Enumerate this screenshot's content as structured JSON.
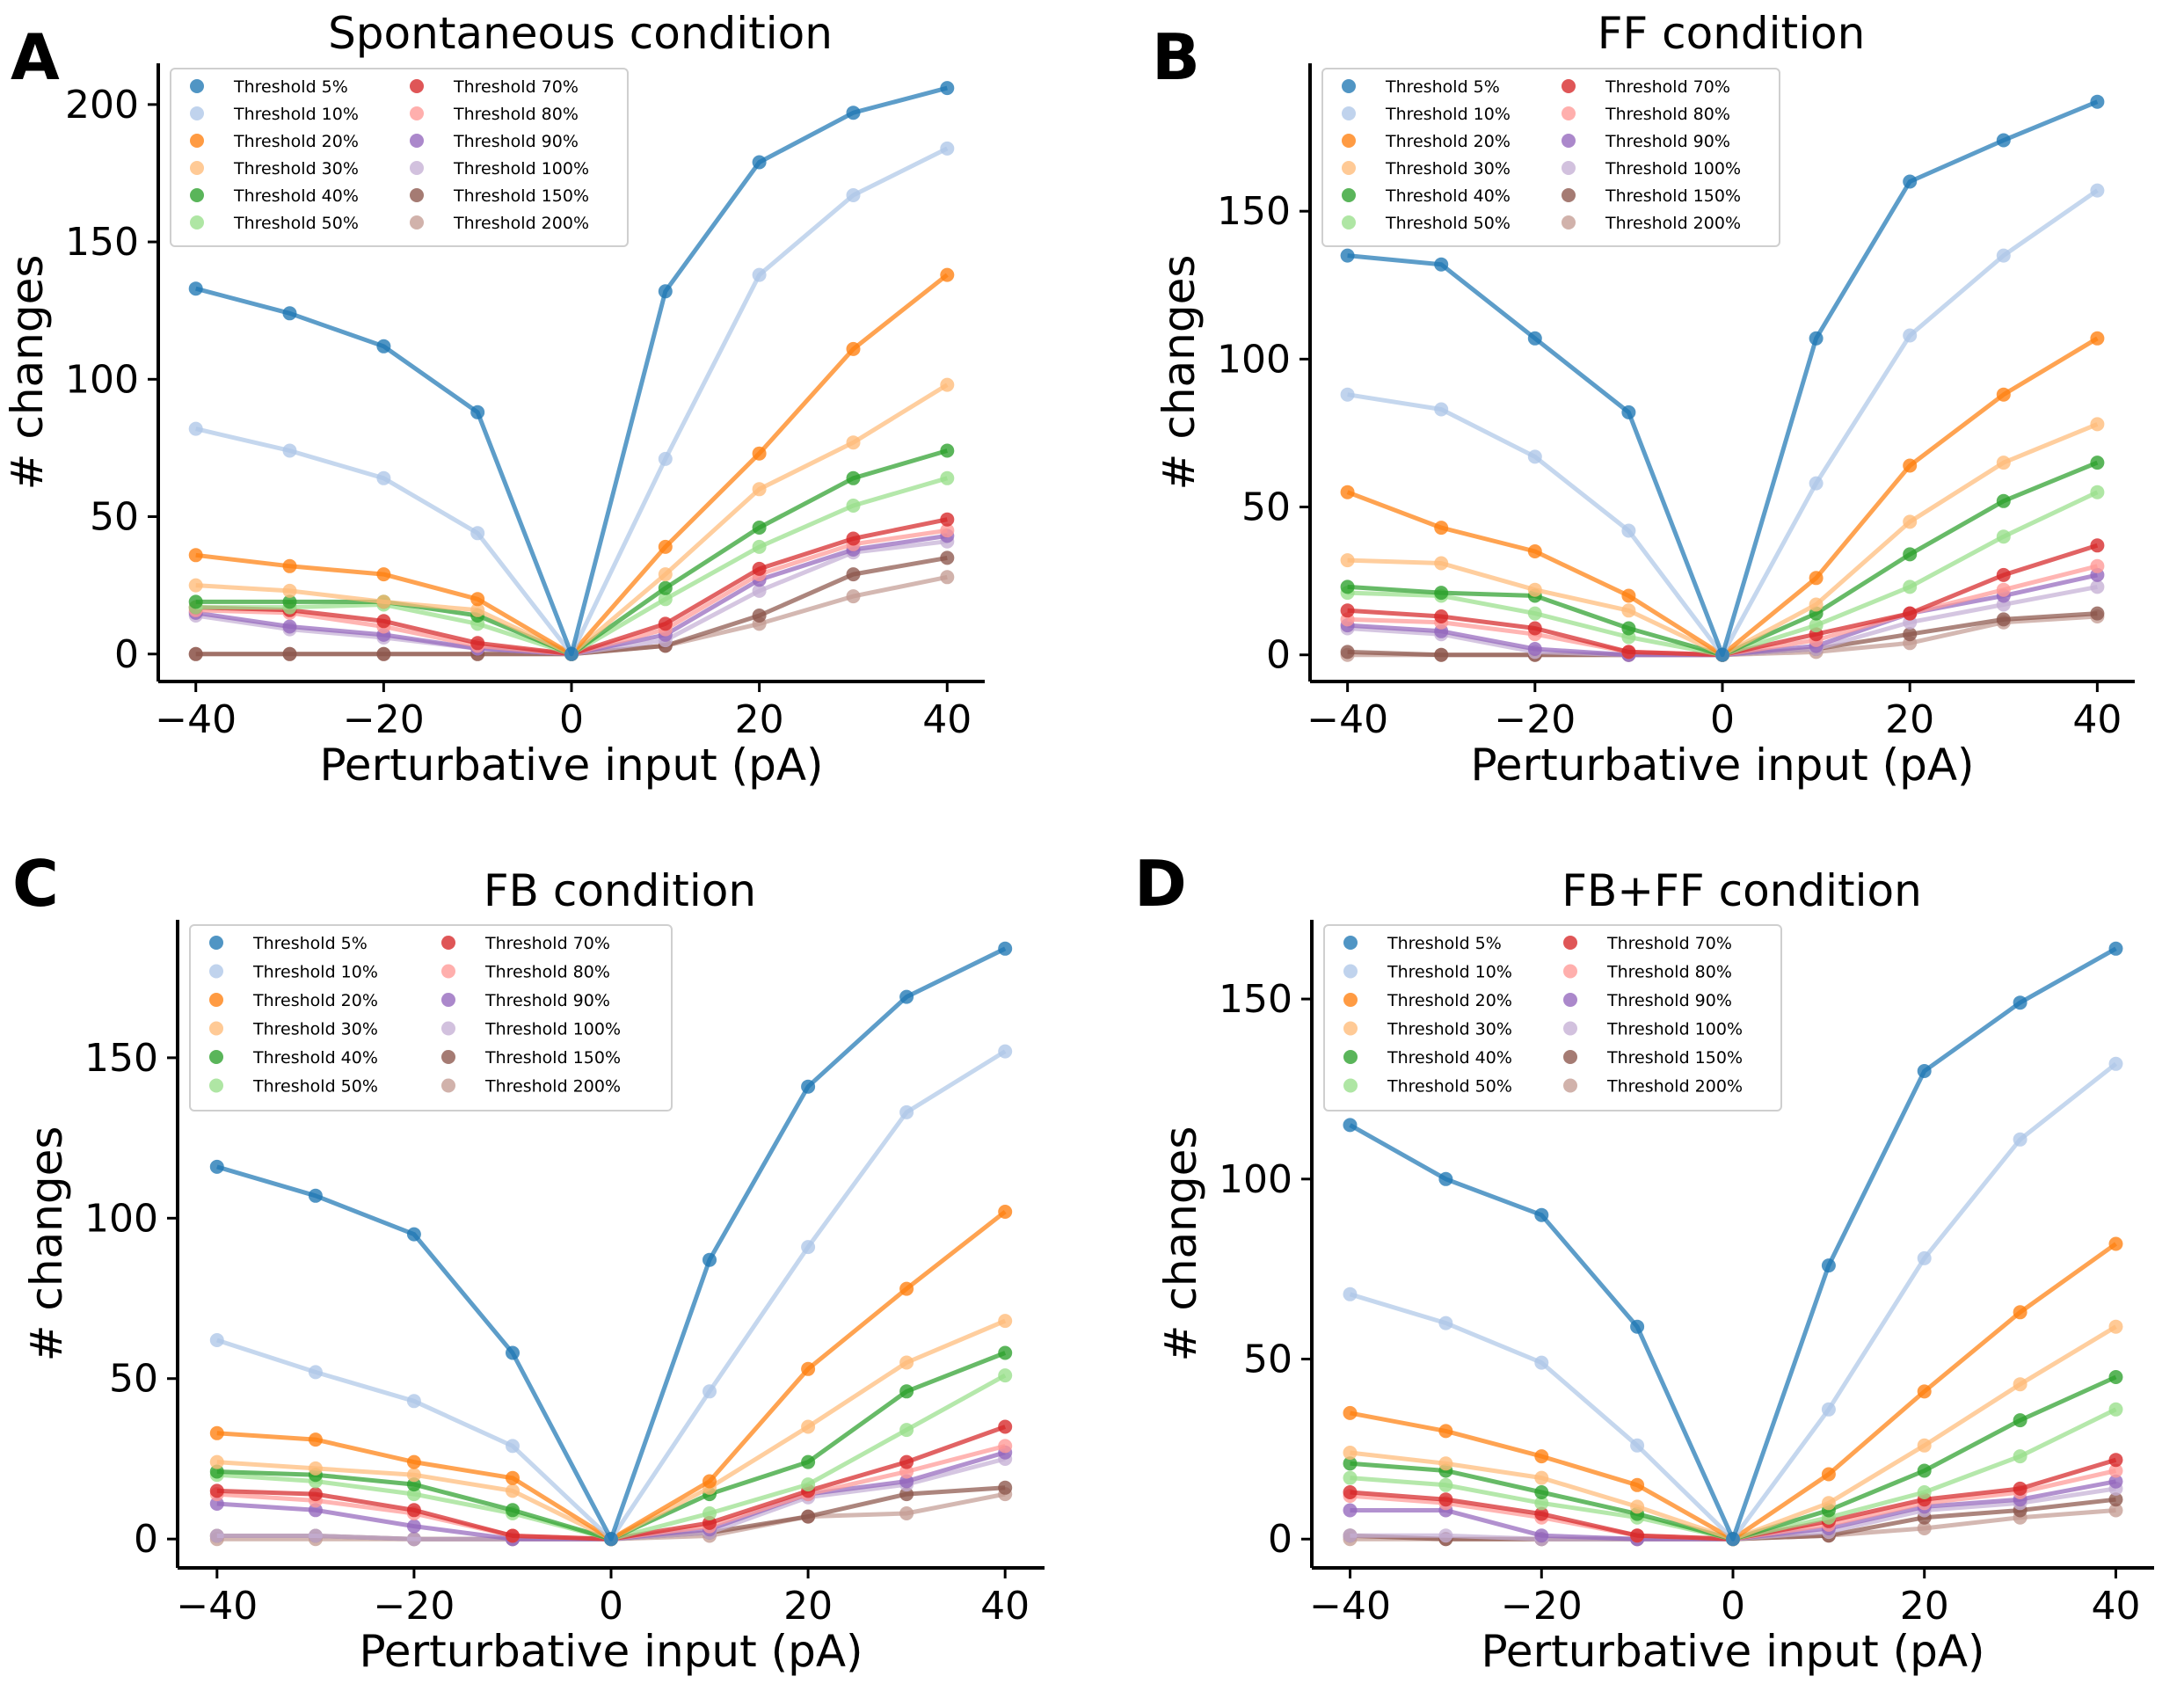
{
  "colors": {
    "Threshold 5%": "#1f77b4",
    "Threshold 10%": "#aec7e8",
    "Threshold 20%": "#ff7f0e",
    "Threshold 30%": "#ffbb78",
    "Threshold 40%": "#2ca02c",
    "Threshold 50%": "#98df8a",
    "Threshold 70%": "#d62728",
    "Threshold 80%": "#ff9896",
    "Threshold 90%": "#9467bd",
    "Threshold 100%": "#c5b0d5",
    "Threshold 150%": "#8c564b",
    "Threshold 200%": "#c49c94"
  },
  "chart_data": [
    {
      "panel": "A",
      "type": "line",
      "title": "Spontaneous condition",
      "xlabel": "Perturbative input (pA)",
      "ylabel": "# changes",
      "x": [
        -40,
        -30,
        -20,
        -10,
        0,
        10,
        20,
        30,
        40
      ],
      "xticks": [
        -40,
        -20,
        0,
        20,
        40
      ],
      "yticks": [
        0,
        50,
        100,
        150,
        200
      ],
      "xlim": [
        -44,
        44
      ],
      "ylim": [
        -10,
        215
      ],
      "legend": "top-left, 2 columns",
      "grid": false,
      "series": [
        {
          "name": "Threshold 5%",
          "values": [
            133,
            124,
            112,
            88,
            0,
            132,
            179,
            197,
            206
          ]
        },
        {
          "name": "Threshold 10%",
          "values": [
            82,
            74,
            64,
            44,
            0,
            71,
            138,
            167,
            184
          ]
        },
        {
          "name": "Threshold 20%",
          "values": [
            36,
            32,
            29,
            20,
            0,
            39,
            73,
            111,
            138
          ]
        },
        {
          "name": "Threshold 30%",
          "values": [
            25,
            23,
            19,
            16,
            0,
            29,
            60,
            77,
            98
          ]
        },
        {
          "name": "Threshold 40%",
          "values": [
            19,
            19,
            19,
            14,
            0,
            24,
            46,
            64,
            74
          ]
        },
        {
          "name": "Threshold 50%",
          "values": [
            17,
            17,
            18,
            11,
            0,
            20,
            39,
            54,
            64
          ]
        },
        {
          "name": "Threshold 70%",
          "values": [
            17,
            16,
            12,
            4,
            0,
            11,
            31,
            42,
            49
          ]
        },
        {
          "name": "Threshold 80%",
          "values": [
            16,
            15,
            10,
            3,
            0,
            9,
            29,
            40,
            45
          ]
        },
        {
          "name": "Threshold 90%",
          "values": [
            15,
            10,
            7,
            2,
            0,
            7,
            27,
            38,
            43
          ]
        },
        {
          "name": "Threshold 100%",
          "values": [
            14,
            9,
            6,
            2,
            0,
            5,
            23,
            37,
            41
          ]
        },
        {
          "name": "Threshold 150%",
          "values": [
            0,
            0,
            0,
            0,
            0,
            3,
            14,
            29,
            35
          ]
        },
        {
          "name": "Threshold 200%",
          "values": [
            0,
            0,
            0,
            0,
            0,
            3,
            11,
            21,
            28
          ]
        }
      ]
    },
    {
      "panel": "B",
      "type": "line",
      "title": "FF condition",
      "xlabel": "Perturbative input (pA)",
      "ylabel": "# changes",
      "x": [
        -40,
        -30,
        -20,
        -10,
        0,
        10,
        20,
        30,
        40
      ],
      "xticks": [
        -40,
        -20,
        0,
        20,
        40
      ],
      "yticks": [
        0,
        50,
        100,
        150
      ],
      "xlim": [
        -44,
        44
      ],
      "ylim": [
        -9,
        200
      ],
      "legend": "top-left, 2 columns",
      "grid": false,
      "series": [
        {
          "name": "Threshold 5%",
          "values": [
            135,
            132,
            107,
            82,
            0,
            107,
            160,
            174,
            187
          ]
        },
        {
          "name": "Threshold 10%",
          "values": [
            88,
            83,
            67,
            42,
            0,
            58,
            108,
            135,
            157
          ]
        },
        {
          "name": "Threshold 20%",
          "values": [
            55,
            43,
            35,
            20,
            0,
            26,
            64,
            88,
            107
          ]
        },
        {
          "name": "Threshold 30%",
          "values": [
            32,
            31,
            22,
            15,
            0,
            17,
            45,
            65,
            78
          ]
        },
        {
          "name": "Threshold 40%",
          "values": [
            23,
            21,
            20,
            9,
            0,
            14,
            34,
            52,
            65
          ]
        },
        {
          "name": "Threshold 50%",
          "values": [
            21,
            20,
            14,
            6,
            0,
            10,
            23,
            40,
            55
          ]
        },
        {
          "name": "Threshold 70%",
          "values": [
            15,
            13,
            9,
            1,
            0,
            7,
            14,
            27,
            37
          ]
        },
        {
          "name": "Threshold 80%",
          "values": [
            12,
            11,
            7,
            1,
            0,
            5,
            14,
            22,
            30
          ]
        },
        {
          "name": "Threshold 90%",
          "values": [
            10,
            8,
            2,
            0,
            0,
            3,
            14,
            20,
            27
          ]
        },
        {
          "name": "Threshold 100%",
          "values": [
            9,
            7,
            1,
            0,
            0,
            2,
            11,
            17,
            23
          ]
        },
        {
          "name": "Threshold 150%",
          "values": [
            1,
            0,
            0,
            0,
            0,
            2,
            7,
            12,
            14
          ]
        },
        {
          "name": "Threshold 200%",
          "values": [
            0,
            0,
            0,
            0,
            0,
            1,
            4,
            11,
            13
          ]
        }
      ]
    },
    {
      "panel": "C",
      "type": "line",
      "title": "FB condition",
      "xlabel": "Perturbative input (pA)",
      "ylabel": "# changes",
      "x": [
        -40,
        -30,
        -20,
        -10,
        0,
        10,
        20,
        30,
        40
      ],
      "xticks": [
        -40,
        -20,
        0,
        20,
        40
      ],
      "yticks": [
        0,
        50,
        100,
        150
      ],
      "xlim": [
        -44,
        44
      ],
      "ylim": [
        -9,
        193
      ],
      "legend": "top-left, 2 columns",
      "grid": false,
      "series": [
        {
          "name": "Threshold 5%",
          "values": [
            116,
            107,
            95,
            58,
            0,
            87,
            141,
            169,
            184
          ]
        },
        {
          "name": "Threshold 10%",
          "values": [
            62,
            52,
            43,
            29,
            0,
            46,
            91,
            133,
            152
          ]
        },
        {
          "name": "Threshold 20%",
          "values": [
            33,
            31,
            24,
            19,
            0,
            18,
            53,
            78,
            102
          ]
        },
        {
          "name": "Threshold 30%",
          "values": [
            24,
            22,
            20,
            15,
            0,
            16,
            35,
            55,
            68
          ]
        },
        {
          "name": "Threshold 40%",
          "values": [
            21,
            20,
            17,
            9,
            0,
            14,
            24,
            46,
            58
          ]
        },
        {
          "name": "Threshold 50%",
          "values": [
            20,
            18,
            14,
            8,
            0,
            8,
            17,
            34,
            51
          ]
        },
        {
          "name": "Threshold 70%",
          "values": [
            15,
            14,
            9,
            1,
            0,
            5,
            15,
            24,
            35
          ]
        },
        {
          "name": "Threshold 80%",
          "values": [
            14,
            12,
            8,
            1,
            0,
            4,
            14,
            21,
            29
          ]
        },
        {
          "name": "Threshold 90%",
          "values": [
            11,
            9,
            4,
            0,
            0,
            3,
            14,
            18,
            27
          ]
        },
        {
          "name": "Threshold 100%",
          "values": [
            1,
            1,
            0,
            0,
            0,
            2,
            13,
            17,
            25
          ]
        },
        {
          "name": "Threshold 150%",
          "values": [
            1,
            1,
            0,
            0,
            0,
            2,
            7,
            14,
            16
          ]
        },
        {
          "name": "Threshold 200%",
          "values": [
            0,
            0,
            0,
            0,
            0,
            1,
            7,
            8,
            14
          ]
        }
      ]
    },
    {
      "panel": "D",
      "type": "line",
      "title": "FB+FF condition",
      "xlabel": "Perturbative input (pA)",
      "ylabel": "# changes",
      "x": [
        -40,
        -30,
        -20,
        -10,
        0,
        10,
        20,
        30,
        40
      ],
      "xticks": [
        -40,
        -20,
        0,
        20,
        40
      ],
      "yticks": [
        0,
        50,
        100,
        150
      ],
      "xlim": [
        -44,
        44
      ],
      "ylim": [
        -8,
        172
      ],
      "legend": "top-left, 2 columns",
      "grid": false,
      "series": [
        {
          "name": "Threshold 5%",
          "values": [
            115,
            100,
            90,
            59,
            0,
            76,
            130,
            149,
            164
          ]
        },
        {
          "name": "Threshold 10%",
          "values": [
            68,
            60,
            49,
            26,
            0,
            36,
            78,
            111,
            132
          ]
        },
        {
          "name": "Threshold 20%",
          "values": [
            35,
            30,
            23,
            15,
            0,
            18,
            41,
            63,
            82
          ]
        },
        {
          "name": "Threshold 30%",
          "values": [
            24,
            21,
            17,
            9,
            0,
            10,
            26,
            43,
            59
          ]
        },
        {
          "name": "Threshold 40%",
          "values": [
            21,
            19,
            13,
            7,
            0,
            8,
            19,
            33,
            45
          ]
        },
        {
          "name": "Threshold 50%",
          "values": [
            17,
            15,
            10,
            6,
            0,
            6,
            13,
            23,
            36
          ]
        },
        {
          "name": "Threshold 70%",
          "values": [
            13,
            11,
            7,
            1,
            0,
            5,
            11,
            14,
            22
          ]
        },
        {
          "name": "Threshold 80%",
          "values": [
            12,
            10,
            6,
            1,
            0,
            4,
            10,
            13,
            19
          ]
        },
        {
          "name": "Threshold 90%",
          "values": [
            8,
            8,
            1,
            0,
            0,
            3,
            9,
            11,
            16
          ]
        },
        {
          "name": "Threshold 100%",
          "values": [
            1,
            1,
            0,
            0,
            0,
            2,
            8,
            10,
            14
          ]
        },
        {
          "name": "Threshold 150%",
          "values": [
            1,
            0,
            0,
            0,
            0,
            1,
            6,
            8,
            11
          ]
        },
        {
          "name": "Threshold 200%",
          "values": [
            0,
            0,
            0,
            0,
            0,
            1,
            3,
            6,
            8
          ]
        }
      ]
    }
  ]
}
